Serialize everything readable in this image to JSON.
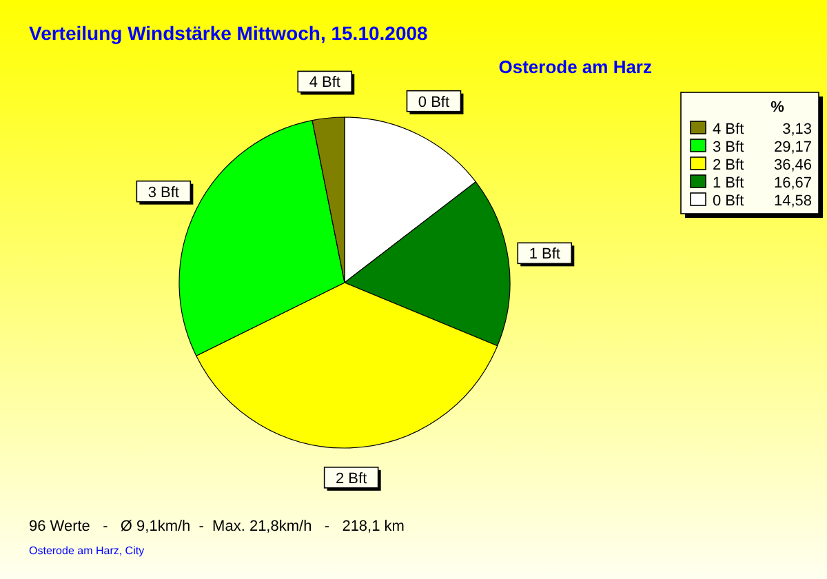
{
  "chart_data": {
    "type": "pie",
    "title": "Verteilung Windstärke  Mittwoch, 15.10.2008",
    "subtitle": "Osterode am Harz",
    "legend_title": "%",
    "legend": "top right",
    "categories": [
      "0 Bft",
      "1 Bft",
      "2 Bft",
      "3 Bft",
      "4 Bft"
    ],
    "values": [
      14.58,
      16.67,
      36.46,
      29.17,
      3.13
    ],
    "value_labels": [
      "14,58",
      "16,67",
      "36,46",
      "29,17",
      "3,13"
    ],
    "colors": [
      "#ffffff",
      "#008000",
      "#ffff00",
      "#00ff00",
      "#808000"
    ],
    "annotations": [
      "96 Werte   -   Ø 9,1km/h  -  Max. 21,8km/h   -   218,1 km",
      "Osterode am Harz, City"
    ]
  }
}
